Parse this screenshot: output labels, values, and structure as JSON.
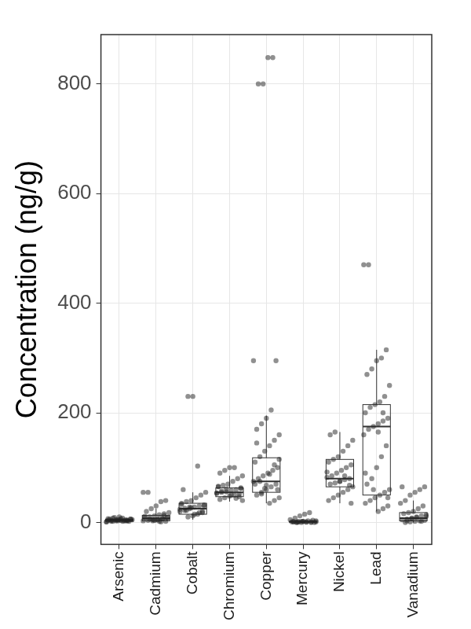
{
  "chart_data": {
    "type": "boxplot",
    "y_label": "Concentration (ng/g)",
    "categories": [
      "Arsenic",
      "Cadmium",
      "Cobalt",
      "Chromium",
      "Copper",
      "Mercury",
      "Nickel",
      "Lead",
      "Vanadium"
    ],
    "boxes": [
      {
        "whisker_low": 0,
        "q1": 2,
        "median": 4,
        "q3": 6,
        "whisker_high": 10
      },
      {
        "whisker_low": 0,
        "q1": 3,
        "median": 7,
        "q3": 13,
        "whisker_high": 25
      },
      {
        "whisker_low": 5,
        "q1": 15,
        "median": 25,
        "q3": 35,
        "whisker_high": 55
      },
      {
        "whisker_low": 38,
        "q1": 47,
        "median": 55,
        "q3": 63,
        "whisker_high": 85
      },
      {
        "whisker_low": 35,
        "q1": 55,
        "median": 75,
        "q3": 118,
        "whisker_high": 195
      },
      {
        "whisker_low": 0,
        "q1": 0.5,
        "median": 1,
        "q3": 2,
        "whisker_high": 4
      },
      {
        "whisker_low": 35,
        "q1": 65,
        "median": 80,
        "q3": 115,
        "whisker_high": 165
      },
      {
        "whisker_low": 20,
        "q1": 50,
        "median": 175,
        "q3": 215,
        "whisker_high": 315
      },
      {
        "whisker_low": 0,
        "q1": 3,
        "median": 8,
        "q3": 18,
        "whisker_high": 40
      }
    ],
    "values": [
      [
        1,
        2,
        3,
        4,
        5,
        6,
        7,
        8,
        3,
        2,
        4,
        5,
        6,
        9,
        10,
        3,
        2,
        1,
        4,
        5,
        7,
        3,
        6,
        4,
        2,
        5,
        8,
        3
      ],
      [
        1,
        2,
        3,
        4,
        5,
        6,
        7,
        8,
        9,
        10,
        12,
        14,
        16,
        18,
        20,
        25,
        30,
        38,
        40,
        55,
        55,
        3,
        5,
        7,
        9,
        11,
        6,
        4,
        2,
        13
      ],
      [
        10,
        12,
        15,
        18,
        20,
        22,
        25,
        28,
        30,
        32,
        35,
        38,
        40,
        45,
        50,
        55,
        60,
        230,
        230,
        103,
        20,
        24,
        26,
        28,
        15,
        18,
        30,
        33,
        22,
        27
      ],
      [
        40,
        42,
        45,
        48,
        50,
        52,
        54,
        55,
        56,
        58,
        60,
        62,
        65,
        68,
        70,
        75,
        80,
        85,
        90,
        95,
        100,
        100,
        47,
        53,
        57,
        61,
        50,
        44,
        63,
        66
      ],
      [
        35,
        40,
        45,
        50,
        55,
        60,
        65,
        70,
        75,
        80,
        85,
        90,
        95,
        100,
        110,
        120,
        130,
        140,
        150,
        160,
        170,
        180,
        190,
        205,
        295,
        295,
        800,
        800,
        848,
        848,
        60,
        70,
        75,
        62,
        88,
        105,
        115,
        145,
        52,
        68
      ],
      [
        0,
        0,
        0.5,
        1,
        1,
        1.5,
        2,
        2,
        3,
        4,
        5,
        8,
        12,
        15,
        18,
        0,
        1,
        0.5,
        2,
        1,
        0,
        3,
        1,
        0.5,
        2
      ],
      [
        35,
        40,
        45,
        50,
        55,
        60,
        65,
        70,
        72,
        75,
        78,
        80,
        82,
        85,
        90,
        95,
        100,
        105,
        110,
        115,
        120,
        130,
        140,
        150,
        160,
        165,
        75,
        85,
        68,
        92
      ],
      [
        20,
        25,
        30,
        35,
        40,
        45,
        50,
        55,
        60,
        70,
        80,
        100,
        120,
        140,
        160,
        170,
        175,
        180,
        185,
        190,
        200,
        210,
        215,
        220,
        230,
        250,
        270,
        280,
        295,
        300,
        315,
        470,
        470,
        60,
        165,
        200,
        45,
        90
      ],
      [
        0,
        1,
        2,
        3,
        4,
        5,
        6,
        8,
        10,
        12,
        14,
        16,
        18,
        20,
        25,
        30,
        35,
        40,
        50,
        55,
        60,
        65,
        65,
        3,
        7,
        9,
        2,
        11
      ]
    ],
    "color": "#222222",
    "ylim": [
      -40,
      890
    ],
    "yticks": [
      0,
      200,
      400,
      600,
      800
    ],
    "grid": true
  }
}
